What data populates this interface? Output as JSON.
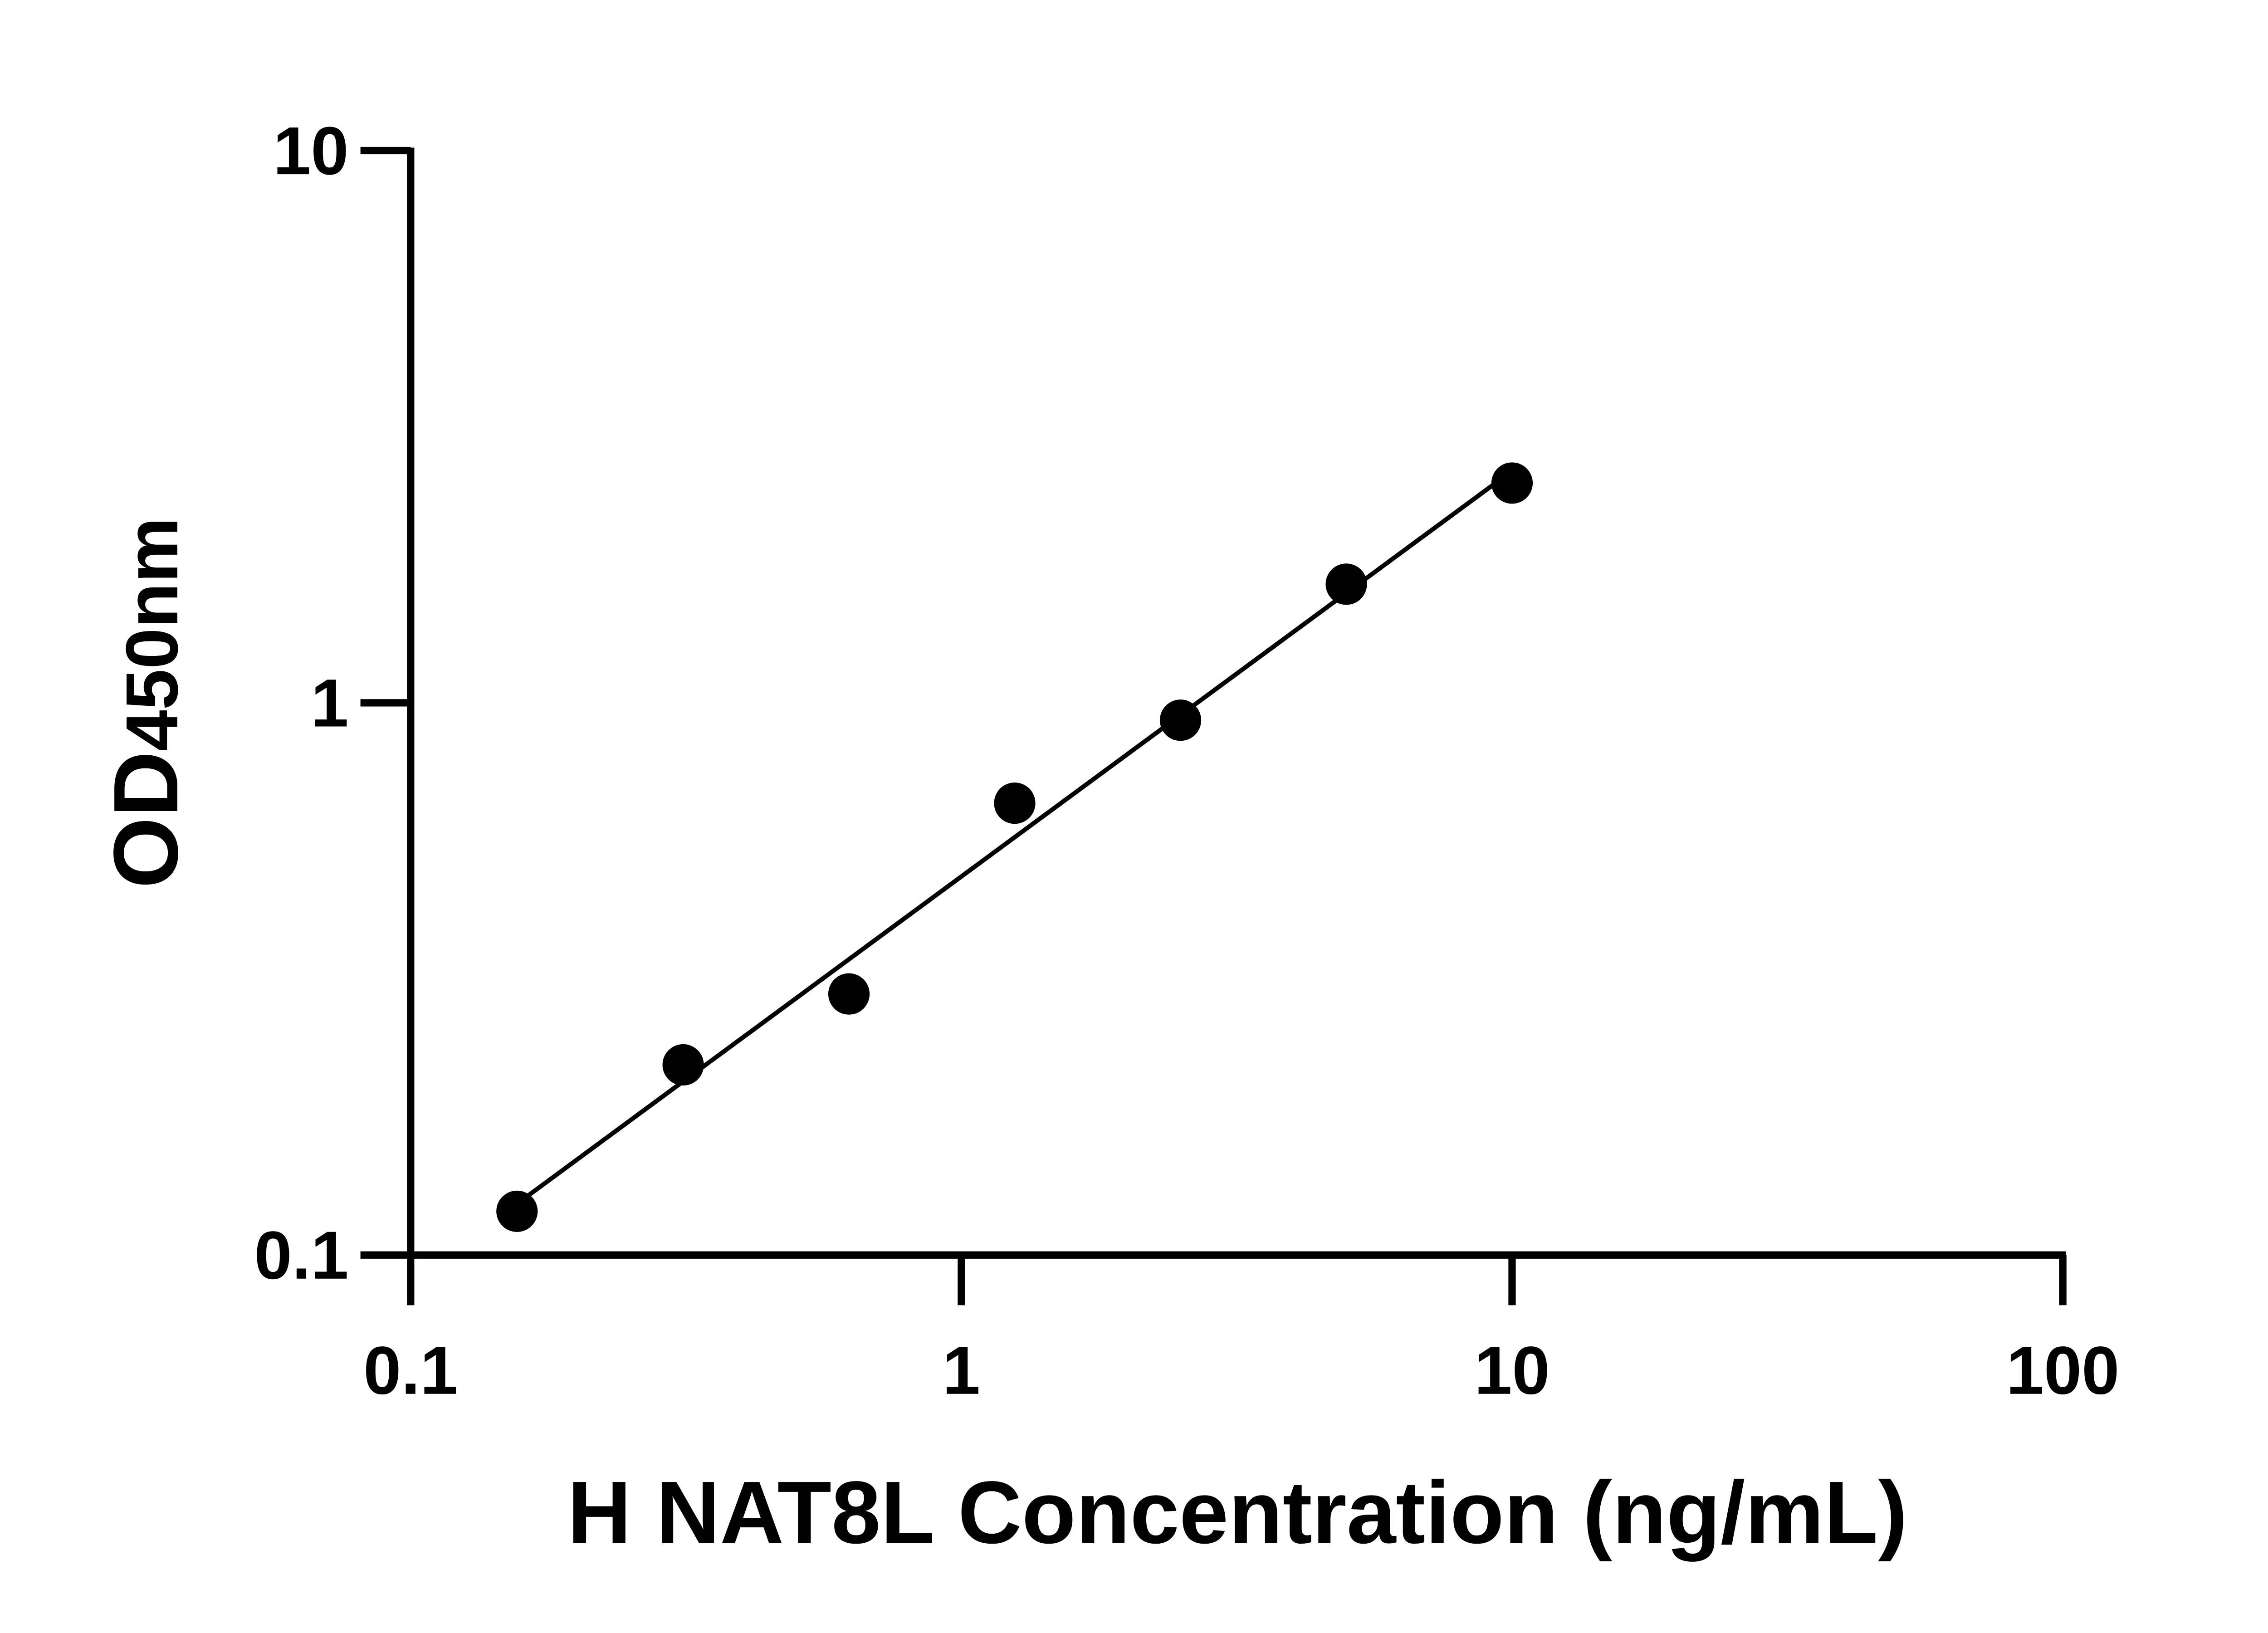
{
  "chart_data": {
    "type": "scatter",
    "title": "",
    "xlabel": "H NAT8L Concentration (ng/mL)",
    "ylabel_main": "OD",
    "ylabel_sub": "450nm",
    "x_scale": "log",
    "y_scale": "log",
    "xlim": [
      0.1,
      100
    ],
    "ylim": [
      0.1,
      10
    ],
    "x_ticks": [
      "0.1",
      "1",
      "10",
      "100"
    ],
    "y_ticks": [
      "0.1",
      "1",
      "10"
    ],
    "grid": false,
    "fit_line": true,
    "series": [
      {
        "x": [
          0.156,
          0.3125,
          0.625,
          1.25,
          2.5,
          5,
          10
        ],
        "y": [
          0.12,
          0.221,
          0.297,
          0.658,
          0.93,
          1.64,
          2.5
        ]
      }
    ],
    "colors": {
      "points": "#000000",
      "line": "#000000"
    }
  }
}
